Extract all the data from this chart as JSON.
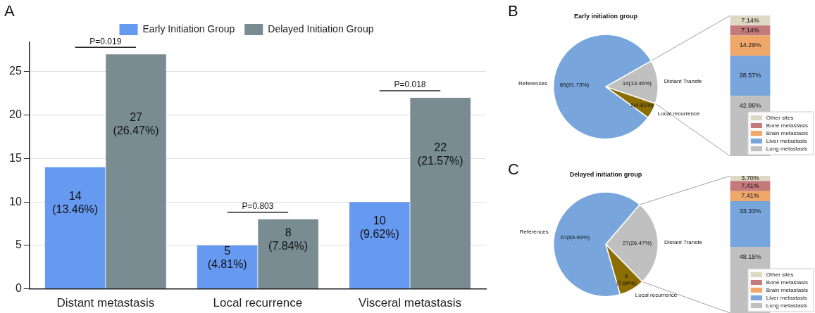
{
  "chart_data": [
    {
      "type": "bar",
      "categories": [
        "Distant metastasis",
        "Local recurrence",
        "Visceral metastasis"
      ],
      "series": [
        {
          "name": "Early Initiation Group",
          "color": "#6699f0",
          "values": [
            14,
            5,
            10
          ],
          "value_labels": [
            "14\n(13.46%)",
            "5\n(4.81%)",
            "10\n(9.62%)"
          ]
        },
        {
          "name": "Delayed Initiation Group",
          "color": "#788c92",
          "values": [
            27,
            8,
            22
          ],
          "value_labels": [
            "27\n(26.47%)",
            "8\n(7.84%)",
            "22\n(21.57%)"
          ]
        }
      ],
      "ylim": [
        0,
        28.4
      ],
      "yticks": [
        0,
        5,
        10,
        15,
        20,
        25
      ],
      "grid": "y",
      "legend": "top",
      "annotations": [
        "A",
        "P=0.019",
        "P=0.803",
        "P=0.018"
      ]
    },
    {
      "type": "pie",
      "title": "Early initiation group",
      "categories": [
        "References",
        "Distant Transfe",
        "Local recurrence"
      ],
      "values": [
        85,
        14,
        5
      ],
      "value_labels": [
        "85(81.73%)",
        "14(13.46%)",
        "5(4.81%)"
      ],
      "colors": [
        "#77a5dc",
        "#c0c0c0",
        "#8b6d00"
      ],
      "annotations": [
        "B"
      ]
    },
    {
      "type": "bar",
      "stacked": true,
      "categories": [
        null
      ],
      "tick_labels": false,
      "legend": "right",
      "series": [
        {
          "name": "Lung metastasis",
          "color": "#c0c0c0",
          "values": [
            42.86
          ],
          "value_labels": [
            "42.86%"
          ]
        },
        {
          "name": "Liver metastasis",
          "color": "#77a5dc",
          "values": [
            28.57
          ],
          "value_labels": [
            "28.57%"
          ]
        },
        {
          "name": "Brain metastasis",
          "color": "#efa76a",
          "values": [
            14.29
          ],
          "value_labels": [
            "14.29%"
          ]
        },
        {
          "name": "Bone metastasis",
          "color": "#c47a7a",
          "values": [
            7.14
          ],
          "value_labels": [
            "7.14%"
          ]
        },
        {
          "name": "Other sites",
          "color": "#ddd8c4",
          "values": [
            7.14
          ],
          "value_labels": [
            "7.14%"
          ]
        }
      ]
    },
    {
      "type": "pie",
      "title": "Delayed initiation group",
      "categories": [
        "References",
        "Distant Transfe",
        "Local recurrence"
      ],
      "values": [
        67,
        27,
        8
      ],
      "value_labels": [
        "67(65.69%)",
        "27(26.47%)",
        "8\n(7.84%)"
      ],
      "colors": [
        "#77a5dc",
        "#c0c0c0",
        "#8b6d00"
      ],
      "annotations": [
        "C"
      ]
    },
    {
      "type": "bar",
      "stacked": true,
      "categories": [
        null
      ],
      "tick_labels": false,
      "legend": "right",
      "series": [
        {
          "name": "Lung metastasis",
          "color": "#c0c0c0",
          "values": [
            48.15
          ],
          "value_labels": [
            "48.15%"
          ]
        },
        {
          "name": "Liver metastasis",
          "color": "#77a5dc",
          "values": [
            33.33
          ],
          "value_labels": [
            "33.33%"
          ]
        },
        {
          "name": "Brain metastasis",
          "color": "#efa76a",
          "values": [
            7.41
          ],
          "value_labels": [
            "7.41%"
          ]
        },
        {
          "name": "Bone metastasis",
          "color": "#c47a7a",
          "values": [
            7.41
          ],
          "value_labels": [
            "7.41%"
          ]
        },
        {
          "name": "Other sites",
          "color": "#ddd8c4",
          "values": [
            3.7
          ],
          "value_labels": [
            "3.70%"
          ]
        }
      ]
    }
  ]
}
